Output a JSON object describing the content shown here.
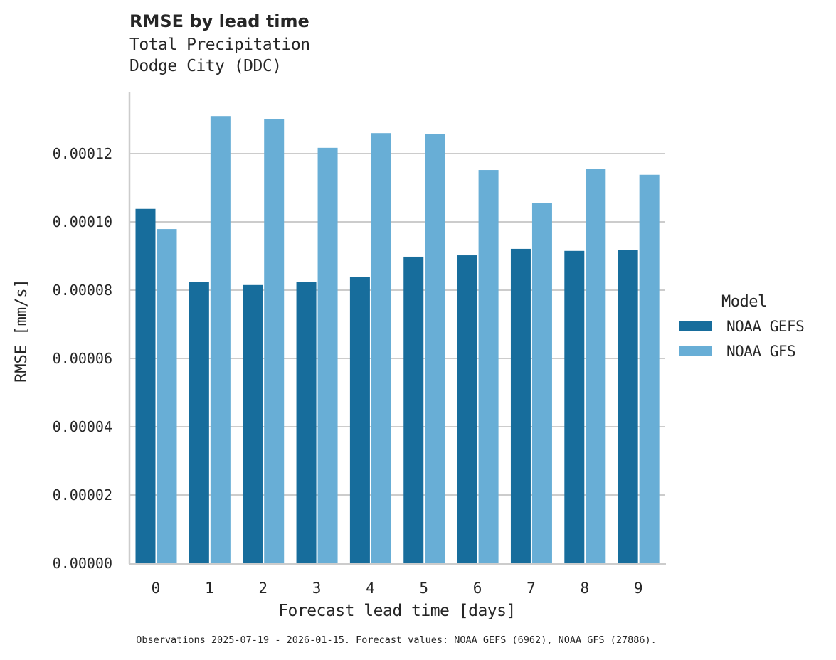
{
  "header": {
    "title": "RMSE by lead time",
    "subtitle_line1": "Total Precipitation",
    "subtitle_line2": "Dodge City (DDC)"
  },
  "axes": {
    "xlabel": "Forecast lead time [days]",
    "ylabel": "RMSE [mm/s]"
  },
  "legend": {
    "title": "Model",
    "items": [
      {
        "label": "NOAA GEFS",
        "color": "#176d9c"
      },
      {
        "label": "NOAA GFS",
        "color": "#68aed6"
      }
    ]
  },
  "footnote": "Observations 2025-07-19 - 2026-01-15. Forecast values: NOAA GEFS (6962), NOAA GFS (27886).",
  "chart_data": {
    "type": "bar",
    "title": "RMSE by lead time",
    "subtitle": "Total Precipitation / Dodge City (DDC)",
    "xlabel": "Forecast lead time [days]",
    "ylabel": "RMSE [mm/s]",
    "categories": [
      "0",
      "1",
      "2",
      "3",
      "4",
      "5",
      "6",
      "7",
      "8",
      "9"
    ],
    "series": [
      {
        "name": "NOAA GEFS",
        "color": "#176d9c",
        "values": [
          0.0001038,
          8.23e-05,
          8.15e-05,
          8.23e-05,
          8.38e-05,
          8.98e-05,
          9.02e-05,
          9.21e-05,
          9.15e-05,
          9.17e-05
        ]
      },
      {
        "name": "NOAA GFS",
        "color": "#68aed6",
        "values": [
          9.79e-05,
          0.000131,
          0.00013,
          0.0001217,
          0.000126,
          0.0001258,
          0.0001152,
          0.0001056,
          0.0001156,
          0.0001138
        ]
      }
    ],
    "yticks": [
      "0.00000",
      "0.00002",
      "0.00004",
      "0.00006",
      "0.00008",
      "0.00010",
      "0.00012"
    ],
    "ytick_values": [
      0,
      2e-05,
      4e-05,
      6e-05,
      8e-05,
      0.0001,
      0.00012
    ],
    "ylim": [
      0,
      0.000138
    ],
    "grid": "horizontal",
    "legend_position": "right"
  }
}
